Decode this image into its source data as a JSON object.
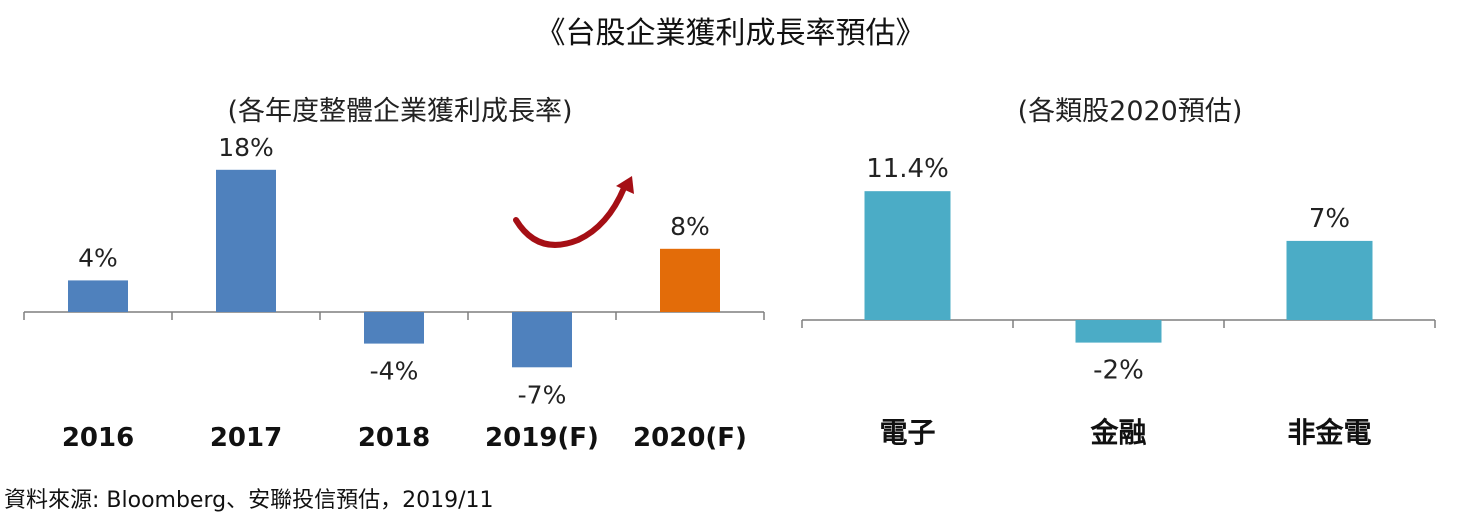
{
  "title": "《台股企業獲利成長率預估》",
  "source": "資料來源: Bloomberg、安聯投信預估，2019/11",
  "colors": {
    "blue": "#4f81bd",
    "orange": "#e36c09",
    "teal": "#4bacc6",
    "arrow": "#a50f15",
    "axis": "#7f7f7f"
  },
  "chart_data": [
    {
      "type": "bar",
      "title": "(各年度整體企業獲利成長率)",
      "categories": [
        "2016",
        "2017",
        "2018",
        "2019(F)",
        "2020(F)"
      ],
      "values": [
        4,
        18,
        -4,
        -7,
        8
      ],
      "data_labels": [
        "4%",
        "18%",
        "-4%",
        "-7%",
        "8%"
      ],
      "highlight": "2020(F)",
      "annotation": "curved up-arrow from 2019(F) toward 2020(F)",
      "grid": false,
      "legend": "none"
    },
    {
      "type": "bar",
      "title": "(各類股2020預估)",
      "categories": [
        "電子",
        "金融",
        "非金電"
      ],
      "values": [
        11.4,
        -2,
        7
      ],
      "data_labels": [
        "11.4%",
        "-2%",
        "7%"
      ],
      "grid": false,
      "legend": "none"
    }
  ]
}
